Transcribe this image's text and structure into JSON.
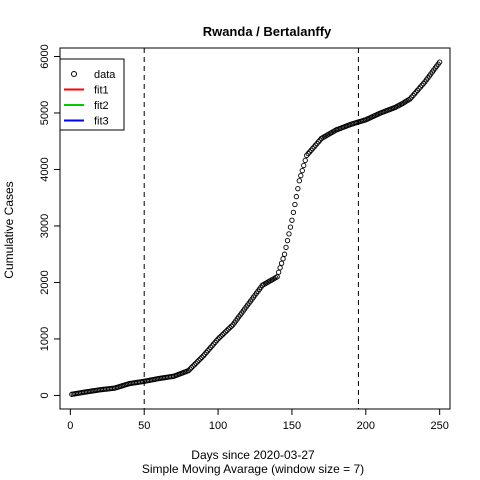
{
  "chart_data": {
    "type": "scatter",
    "title": "Rwanda / Bertalanffy",
    "xlabel": "Days since 2020-03-27",
    "xlabel2": "Simple Moving Avarage (window size = 7)",
    "ylabel": "Cumulative Cases",
    "xlim": [
      -7,
      257
    ],
    "ylim": [
      -240,
      6150
    ],
    "xticks": [
      0,
      50,
      100,
      150,
      200,
      250
    ],
    "yticks": [
      0,
      1000,
      2000,
      3000,
      4000,
      5000,
      6000
    ],
    "vlines": [
      50,
      195
    ],
    "legend": {
      "placement": "top-left",
      "entries": [
        {
          "label": "data",
          "kind": "point",
          "color": "#000000"
        },
        {
          "label": "fit1",
          "kind": "line",
          "color": "#ff0000"
        },
        {
          "label": "fit2",
          "kind": "line",
          "color": "#00cd00"
        },
        {
          "label": "fit3",
          "kind": "line",
          "color": "#0000ff"
        }
      ]
    },
    "series": [
      {
        "name": "data",
        "x_start": 1,
        "x_step": 1,
        "anchors": [
          [
            1,
            20
          ],
          [
            10,
            60
          ],
          [
            20,
            100
          ],
          [
            30,
            130
          ],
          [
            40,
            210
          ],
          [
            50,
            250
          ],
          [
            60,
            300
          ],
          [
            70,
            340
          ],
          [
            80,
            440
          ],
          [
            90,
            700
          ],
          [
            100,
            1000
          ],
          [
            110,
            1250
          ],
          [
            120,
            1600
          ],
          [
            130,
            1950
          ],
          [
            140,
            2100
          ],
          [
            145,
            2500
          ],
          [
            150,
            3100
          ],
          [
            155,
            3800
          ],
          [
            160,
            4250
          ],
          [
            170,
            4550
          ],
          [
            180,
            4700
          ],
          [
            190,
            4800
          ],
          [
            200,
            4880
          ],
          [
            210,
            5000
          ],
          [
            220,
            5100
          ],
          [
            225,
            5170
          ],
          [
            230,
            5250
          ],
          [
            240,
            5550
          ],
          [
            250,
            5900
          ]
        ]
      }
    ]
  }
}
